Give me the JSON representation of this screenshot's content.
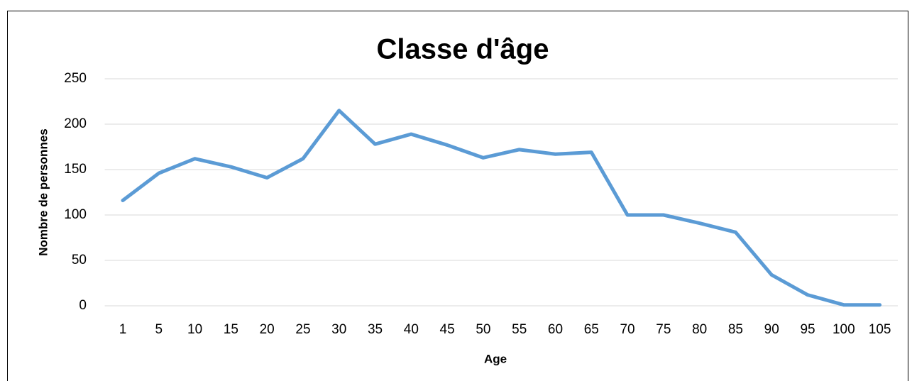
{
  "chart_data": {
    "type": "line",
    "title": "Classe d'âge",
    "x_label": "Age",
    "y_label": "Nombre de personnes",
    "categories": [
      "1",
      "5",
      "10",
      "15",
      "20",
      "25",
      "30",
      "35",
      "40",
      "45",
      "50",
      "55",
      "60",
      "65",
      "70",
      "75",
      "80",
      "85",
      "90",
      "95",
      "100",
      "105"
    ],
    "series": [
      {
        "name": "Nombre de personnes",
        "color": "#5b9bd5",
        "values": [
          116,
          146,
          162,
          153,
          141,
          162,
          215,
          178,
          189,
          177,
          163,
          172,
          167,
          169,
          100,
          100,
          91,
          81,
          34,
          12,
          1,
          1
        ]
      }
    ],
    "ylim": [
      0,
      250
    ],
    "yticks": [
      0,
      50,
      100,
      150,
      200,
      250
    ],
    "grid": true,
    "legend": false
  }
}
